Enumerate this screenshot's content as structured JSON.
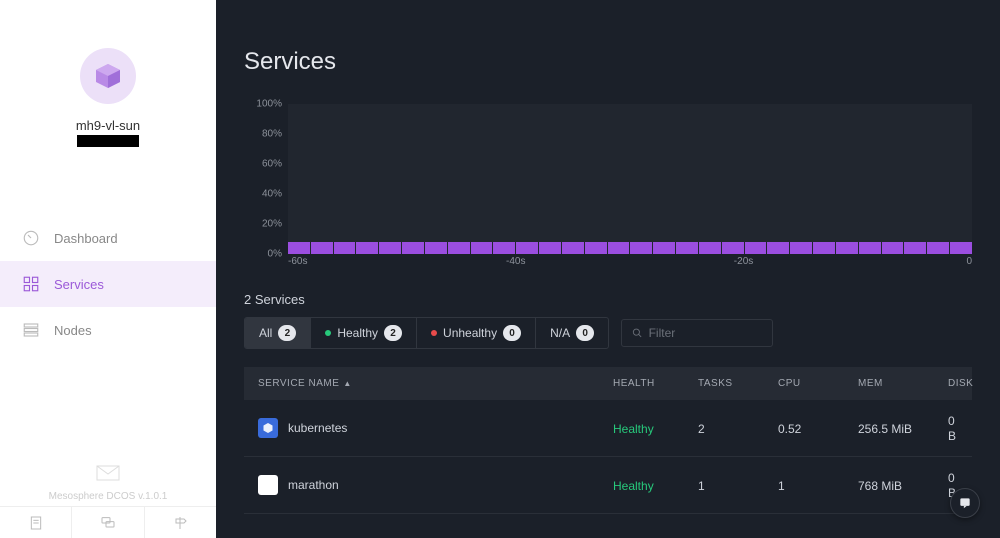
{
  "cluster": {
    "name": "mh9-vl-sun"
  },
  "sidebar": {
    "items": [
      {
        "label": "Dashboard"
      },
      {
        "label": "Services"
      },
      {
        "label": "Nodes"
      }
    ],
    "footer_version": "Mesosphere DCOS v.1.0.1"
  },
  "page": {
    "title": "Services",
    "services_count": "2 Services"
  },
  "chart": {
    "type": "bar",
    "y_ticks": [
      "100%",
      "80%",
      "60%",
      "40%",
      "20%",
      "0%"
    ],
    "x_ticks": [
      {
        "label": "-60s",
        "pos": 0
      },
      {
        "label": "-40s",
        "pos": 33.3
      },
      {
        "label": "-20s",
        "pos": 66.6
      },
      {
        "label": "0",
        "pos": 100
      }
    ],
    "bar_count": 30,
    "bar_value_pct": 8,
    "bar_color": "#9b4ee0",
    "plot_bg": "#21262f",
    "ylim_pct": [
      0,
      100
    ]
  },
  "filters": {
    "tabs": [
      {
        "label": "All",
        "count": 2,
        "active": true
      },
      {
        "label": "Healthy",
        "count": 2,
        "dot": "green"
      },
      {
        "label": "Unhealthy",
        "count": 0,
        "dot": "red"
      },
      {
        "label": "N/A",
        "count": 0
      }
    ],
    "search_placeholder": "Filter"
  },
  "table": {
    "columns": [
      "SERVICE NAME",
      "HEALTH",
      "TASKS",
      "CPU",
      "MEM",
      "DISK"
    ],
    "sorted_col": 0,
    "rows": [
      {
        "name": "kubernetes",
        "icon_bg": "#396bdb",
        "health": "Healthy",
        "tasks": "2",
        "cpu": "0.52",
        "mem": "256.5 MiB",
        "disk": "0 B"
      },
      {
        "name": "marathon",
        "icon_bg": "#ffffff",
        "health": "Healthy",
        "tasks": "1",
        "cpu": "1",
        "mem": "768 MiB",
        "disk": "0 B"
      }
    ]
  },
  "colors": {
    "healthy": "#27c97b",
    "unhealthy": "#e84b4b",
    "accent": "#9b59d8",
    "page_bg": "#1b2029"
  }
}
